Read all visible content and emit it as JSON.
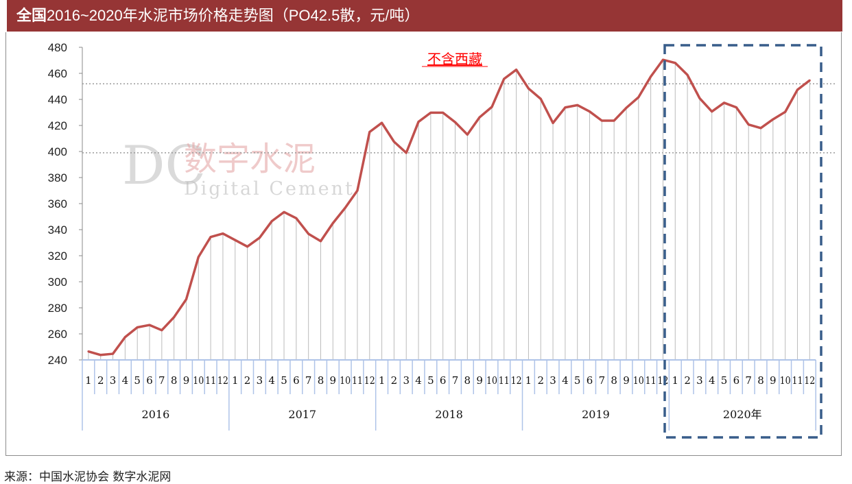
{
  "title": {
    "bold_prefix": "全国",
    "rest": "2016~2020年水泥市场价格走势图（PO42.5散，元/吨）"
  },
  "source": "来源：中国水泥协会  数字水泥网",
  "watermark": {
    "logo": "DC",
    "cn": "数字水泥",
    "en": "Digital Cement"
  },
  "colors": {
    "title_bg": "#963535",
    "line": "#c0504d",
    "highlight_box": "#385d8a",
    "annotation": "#ff0000",
    "axis_ticks": "#aec3e8"
  },
  "chart_data": {
    "type": "line",
    "title": "全国2016~2020年水泥市场价格走势图（PO42.5散，元/吨）",
    "annotation": "不含西藏",
    "ylim": [
      240,
      480
    ],
    "yticks": [
      240,
      260,
      280,
      300,
      320,
      340,
      360,
      380,
      400,
      420,
      440,
      460,
      480
    ],
    "reference_lines": [
      452,
      399
    ],
    "drop_lines": true,
    "highlight": {
      "group": "2020年",
      "style": "dashed box"
    },
    "groups": [
      {
        "label": "2016",
        "months": [
          "1",
          "2",
          "3",
          "4",
          "5",
          "6",
          "7",
          "8",
          "9",
          "10",
          "11",
          "12"
        ],
        "values": [
          246.5,
          243.8,
          244.7,
          257.5,
          265,
          266.8,
          262.8,
          272.8,
          286.5,
          319,
          334.4,
          337
        ]
      },
      {
        "label": "2017",
        "months": [
          "1",
          "2",
          "3",
          "4",
          "5",
          "6",
          "7",
          "8",
          "9",
          "10",
          "11",
          "12"
        ],
        "values": [
          332,
          327,
          333.8,
          346.5,
          353.5,
          348.8,
          336.8,
          331.2,
          345,
          356.7,
          370,
          415
        ]
      },
      {
        "label": "2018",
        "months": [
          "1",
          "2",
          "3",
          "4",
          "5",
          "6",
          "7",
          "8",
          "9",
          "10",
          "11",
          "12"
        ],
        "values": [
          422,
          407.5,
          399,
          422.8,
          429.8,
          429.8,
          422.5,
          413,
          426.3,
          434.2,
          455.8,
          462.8
        ]
      },
      {
        "label": "2019",
        "months": [
          "1",
          "2",
          "3",
          "4",
          "5",
          "6",
          "7",
          "8",
          "9",
          "10",
          "11",
          "12"
        ],
        "values": [
          448.4,
          440.4,
          421.9,
          433.8,
          435.6,
          430.7,
          423.7,
          423.7,
          433.5,
          441.7,
          457.5,
          470.4
        ]
      },
      {
        "label": "2020年",
        "months": [
          "1",
          "2",
          "3",
          "4",
          "5",
          "6",
          "7",
          "8",
          "9",
          "10",
          "11",
          "12"
        ],
        "values": [
          468,
          458.8,
          440.9,
          430.7,
          437.4,
          433.9,
          420.7,
          418,
          424.7,
          430.4,
          447.4,
          454.6
        ]
      }
    ]
  }
}
